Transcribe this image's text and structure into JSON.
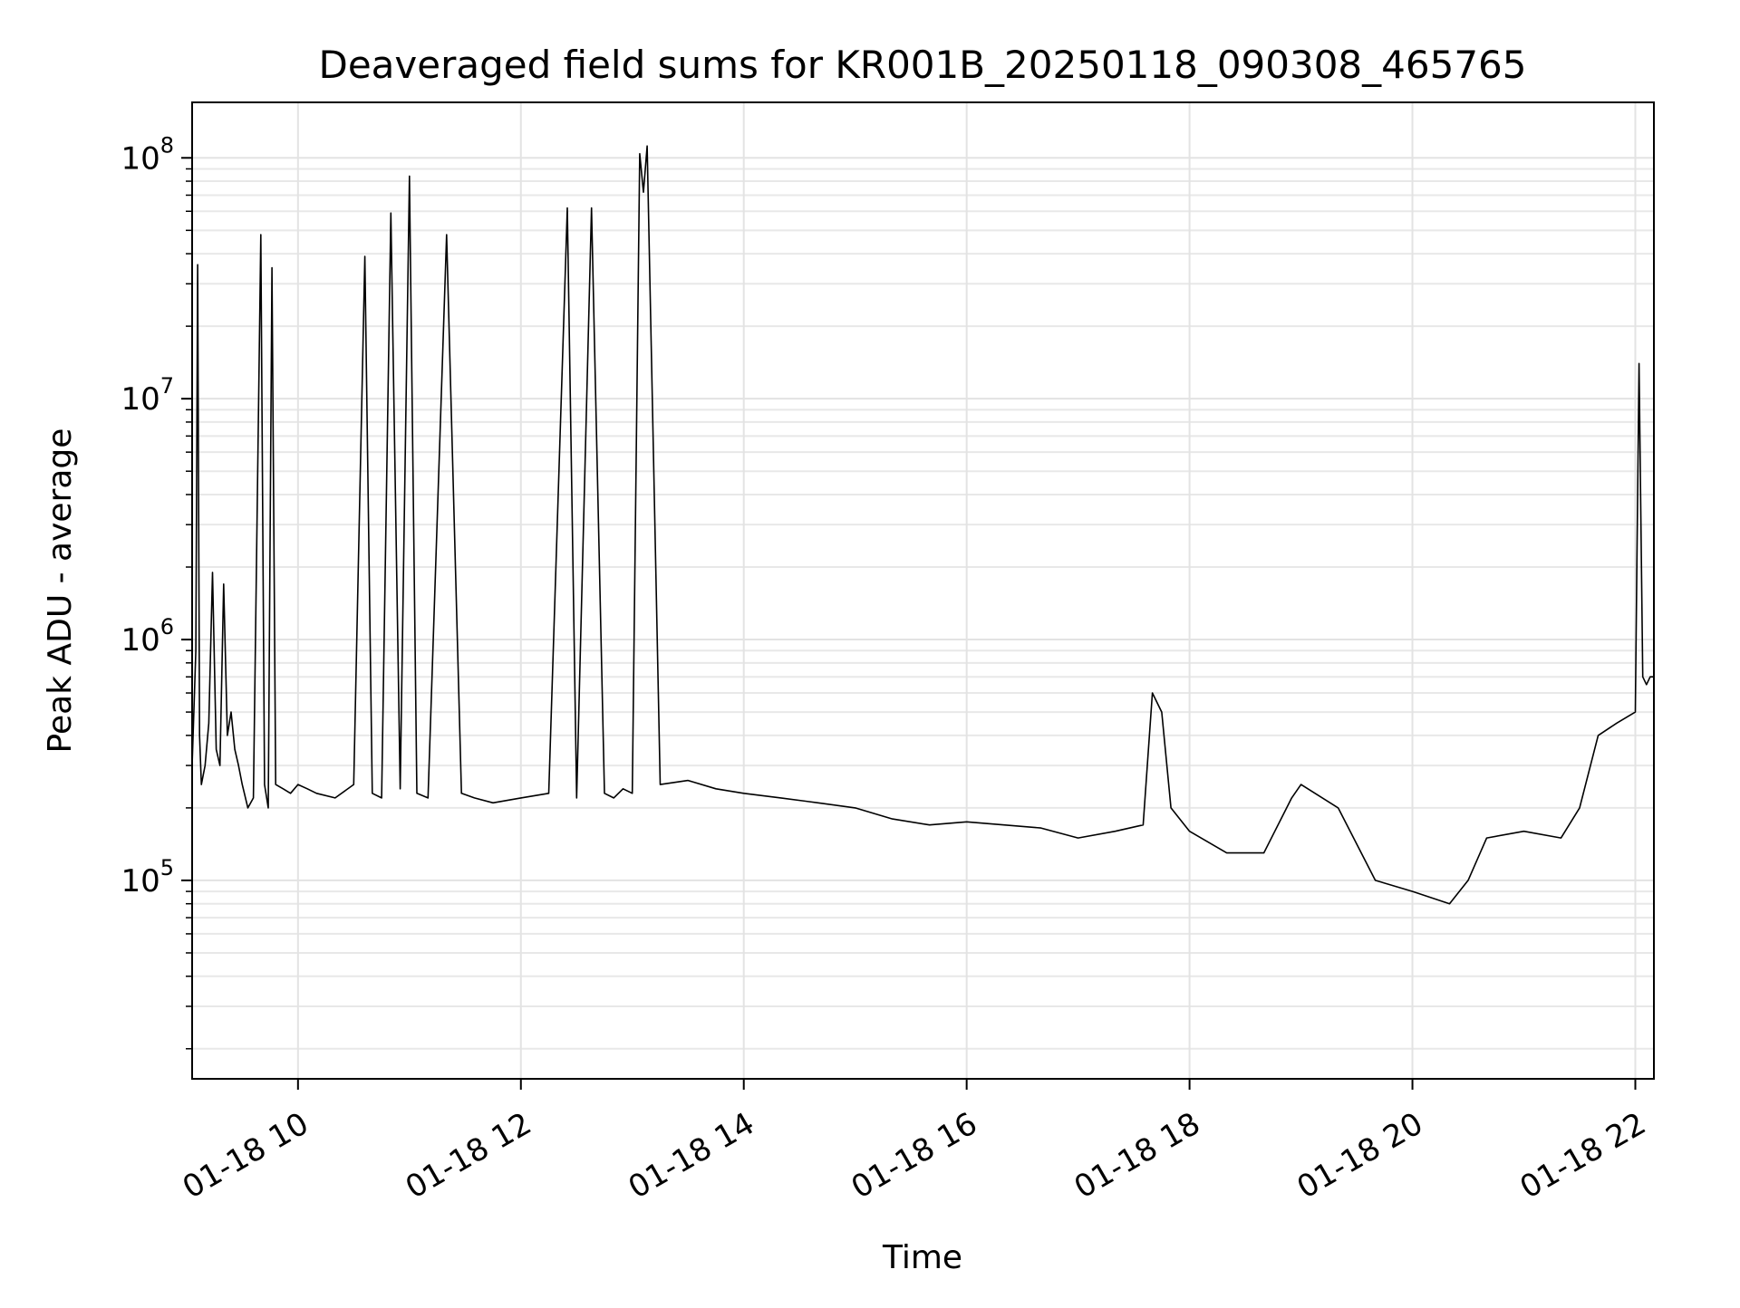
{
  "chart_data": {
    "type": "line",
    "title": "Deaveraged field sums for KR001B_20250118_090308_465765",
    "xlabel": "Time",
    "ylabel": "Peak ADU - average",
    "y_scale": "log",
    "grid": true,
    "legend": "none",
    "xlim": [
      "01-18 09:03",
      "01-18 22:10"
    ],
    "ylim": [
      15000,
      170000000
    ],
    "x_ticks": [
      {
        "value": "01-18 10:00",
        "label": "01-18 10"
      },
      {
        "value": "01-18 12:00",
        "label": "01-18 12"
      },
      {
        "value": "01-18 14:00",
        "label": "01-18 14"
      },
      {
        "value": "01-18 16:00",
        "label": "01-18 16"
      },
      {
        "value": "01-18 18:00",
        "label": "01-18 18"
      },
      {
        "value": "01-18 20:00",
        "label": "01-18 20"
      },
      {
        "value": "01-18 22:00",
        "label": "01-18 22"
      }
    ],
    "y_ticks": [
      {
        "value": 100000,
        "base": "10",
        "exp": "5"
      },
      {
        "value": 1000000,
        "base": "10",
        "exp": "6"
      },
      {
        "value": 10000000,
        "base": "10",
        "exp": "7"
      },
      {
        "value": 100000000,
        "base": "10",
        "exp": "8"
      }
    ],
    "series": [
      {
        "color": "#000000",
        "x": [
          "01-18 09:03",
          "01-18 09:05",
          "01-18 09:06",
          "01-18 09:07",
          "01-18 09:08",
          "01-18 09:10",
          "01-18 09:12",
          "01-18 09:14",
          "01-18 09:16",
          "01-18 09:18",
          "01-18 09:20",
          "01-18 09:22",
          "01-18 09:24",
          "01-18 09:26",
          "01-18 09:28",
          "01-18 09:30",
          "01-18 09:33",
          "01-18 09:36",
          "01-18 09:40",
          "01-18 09:42",
          "01-18 09:44",
          "01-18 09:46",
          "01-18 09:48",
          "01-18 09:52",
          "01-18 09:56",
          "01-18 10:00",
          "01-18 10:05",
          "01-18 10:10",
          "01-18 10:20",
          "01-18 10:30",
          "01-18 10:36",
          "01-18 10:40",
          "01-18 10:45",
          "01-18 10:50",
          "01-18 10:55",
          "01-18 11:00",
          "01-18 11:04",
          "01-18 11:10",
          "01-18 11:20",
          "01-18 11:28",
          "01-18 11:35",
          "01-18 11:45",
          "01-18 12:00",
          "01-18 12:15",
          "01-18 12:25",
          "01-18 12:30",
          "01-18 12:38",
          "01-18 12:45",
          "01-18 12:50",
          "01-18 12:55",
          "01-18 13:00",
          "01-18 13:04",
          "01-18 13:06",
          "01-18 13:08",
          "01-18 13:15",
          "01-18 13:30",
          "01-18 13:45",
          "01-18 14:00",
          "01-18 14:20",
          "01-18 14:40",
          "01-18 15:00",
          "01-18 15:20",
          "01-18 15:40",
          "01-18 16:00",
          "01-18 16:20",
          "01-18 16:40",
          "01-18 17:00",
          "01-18 17:20",
          "01-18 17:35",
          "01-18 17:40",
          "01-18 17:45",
          "01-18 17:50",
          "01-18 18:00",
          "01-18 18:20",
          "01-18 18:40",
          "01-18 18:55",
          "01-18 19:00",
          "01-18 19:20",
          "01-18 19:40",
          "01-18 20:00",
          "01-18 20:20",
          "01-18 20:30",
          "01-18 20:40",
          "01-18 21:00",
          "01-18 21:20",
          "01-18 21:30",
          "01-18 21:40",
          "01-18 21:50",
          "01-18 22:00",
          "01-18 22:02",
          "01-18 22:04",
          "01-18 22:06",
          "01-18 22:08",
          "01-18 22:10"
        ],
        "y": [
          300000,
          900000,
          36000000,
          400000,
          250000,
          300000,
          450000,
          1900000,
          350000,
          300000,
          1700000,
          400000,
          500000,
          350000,
          300000,
          250000,
          200000,
          220000,
          48000000,
          250000,
          200000,
          35000000,
          250000,
          240000,
          230000,
          250000,
          240000,
          230000,
          220000,
          250000,
          39000000,
          230000,
          220000,
          59000000,
          240000,
          84000000,
          230000,
          220000,
          48000000,
          230000,
          220000,
          210000,
          220000,
          230000,
          62000000,
          220000,
          62000000,
          230000,
          220000,
          240000,
          230000,
          104000000,
          72000000,
          112000000,
          250000,
          260000,
          240000,
          230000,
          220000,
          210000,
          200000,
          180000,
          170000,
          175000,
          170000,
          165000,
          150000,
          160000,
          170000,
          600000,
          500000,
          200000,
          160000,
          130000,
          130000,
          220000,
          250000,
          200000,
          100000,
          90000,
          80000,
          100000,
          150000,
          160000,
          150000,
          200000,
          400000,
          450000,
          500000,
          14000000,
          700000,
          650000,
          700000,
          700000
        ]
      }
    ]
  }
}
